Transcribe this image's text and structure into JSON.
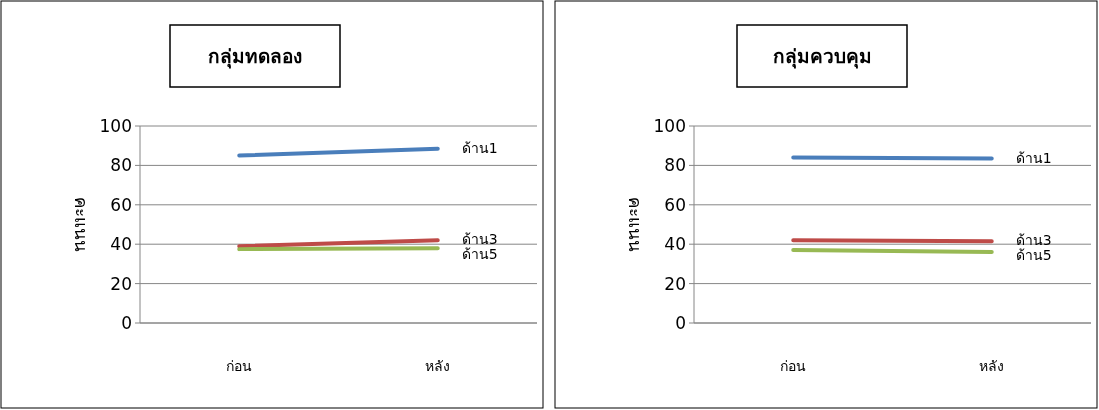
{
  "chart_data": [
    {
      "type": "line",
      "title": "กลุ่มทดลอง",
      "ylabel": "คะแนน",
      "categories": [
        "ก่อน",
        "หลัง"
      ],
      "ylim": [
        0,
        100
      ],
      "yticks": [
        0,
        20,
        40,
        60,
        80,
        100
      ],
      "grid": "y",
      "series": [
        {
          "name": "ด้าน1",
          "color": "#4a7ebb",
          "values": [
            85,
            88.5
          ]
        },
        {
          "name": "ด้าน3",
          "color": "#be4b48",
          "values": [
            39,
            42
          ]
        },
        {
          "name": "ด้าน5",
          "color": "#98b954",
          "values": [
            37.5,
            38
          ]
        }
      ]
    },
    {
      "type": "line",
      "title": "กลุ่มควบคุม",
      "ylabel": "คะแนน",
      "categories": [
        "ก่อน",
        "หลัง"
      ],
      "ylim": [
        0,
        100
      ],
      "yticks": [
        0,
        20,
        40,
        60,
        80,
        100
      ],
      "grid": "y",
      "series": [
        {
          "name": "ด้าน1",
          "color": "#4a7ebb",
          "values": [
            84,
            83.5
          ]
        },
        {
          "name": "ด้าน3",
          "color": "#be4b48",
          "values": [
            42,
            41.5
          ]
        },
        {
          "name": "ด้าน5",
          "color": "#98b954",
          "values": [
            37,
            36
          ]
        }
      ]
    }
  ]
}
